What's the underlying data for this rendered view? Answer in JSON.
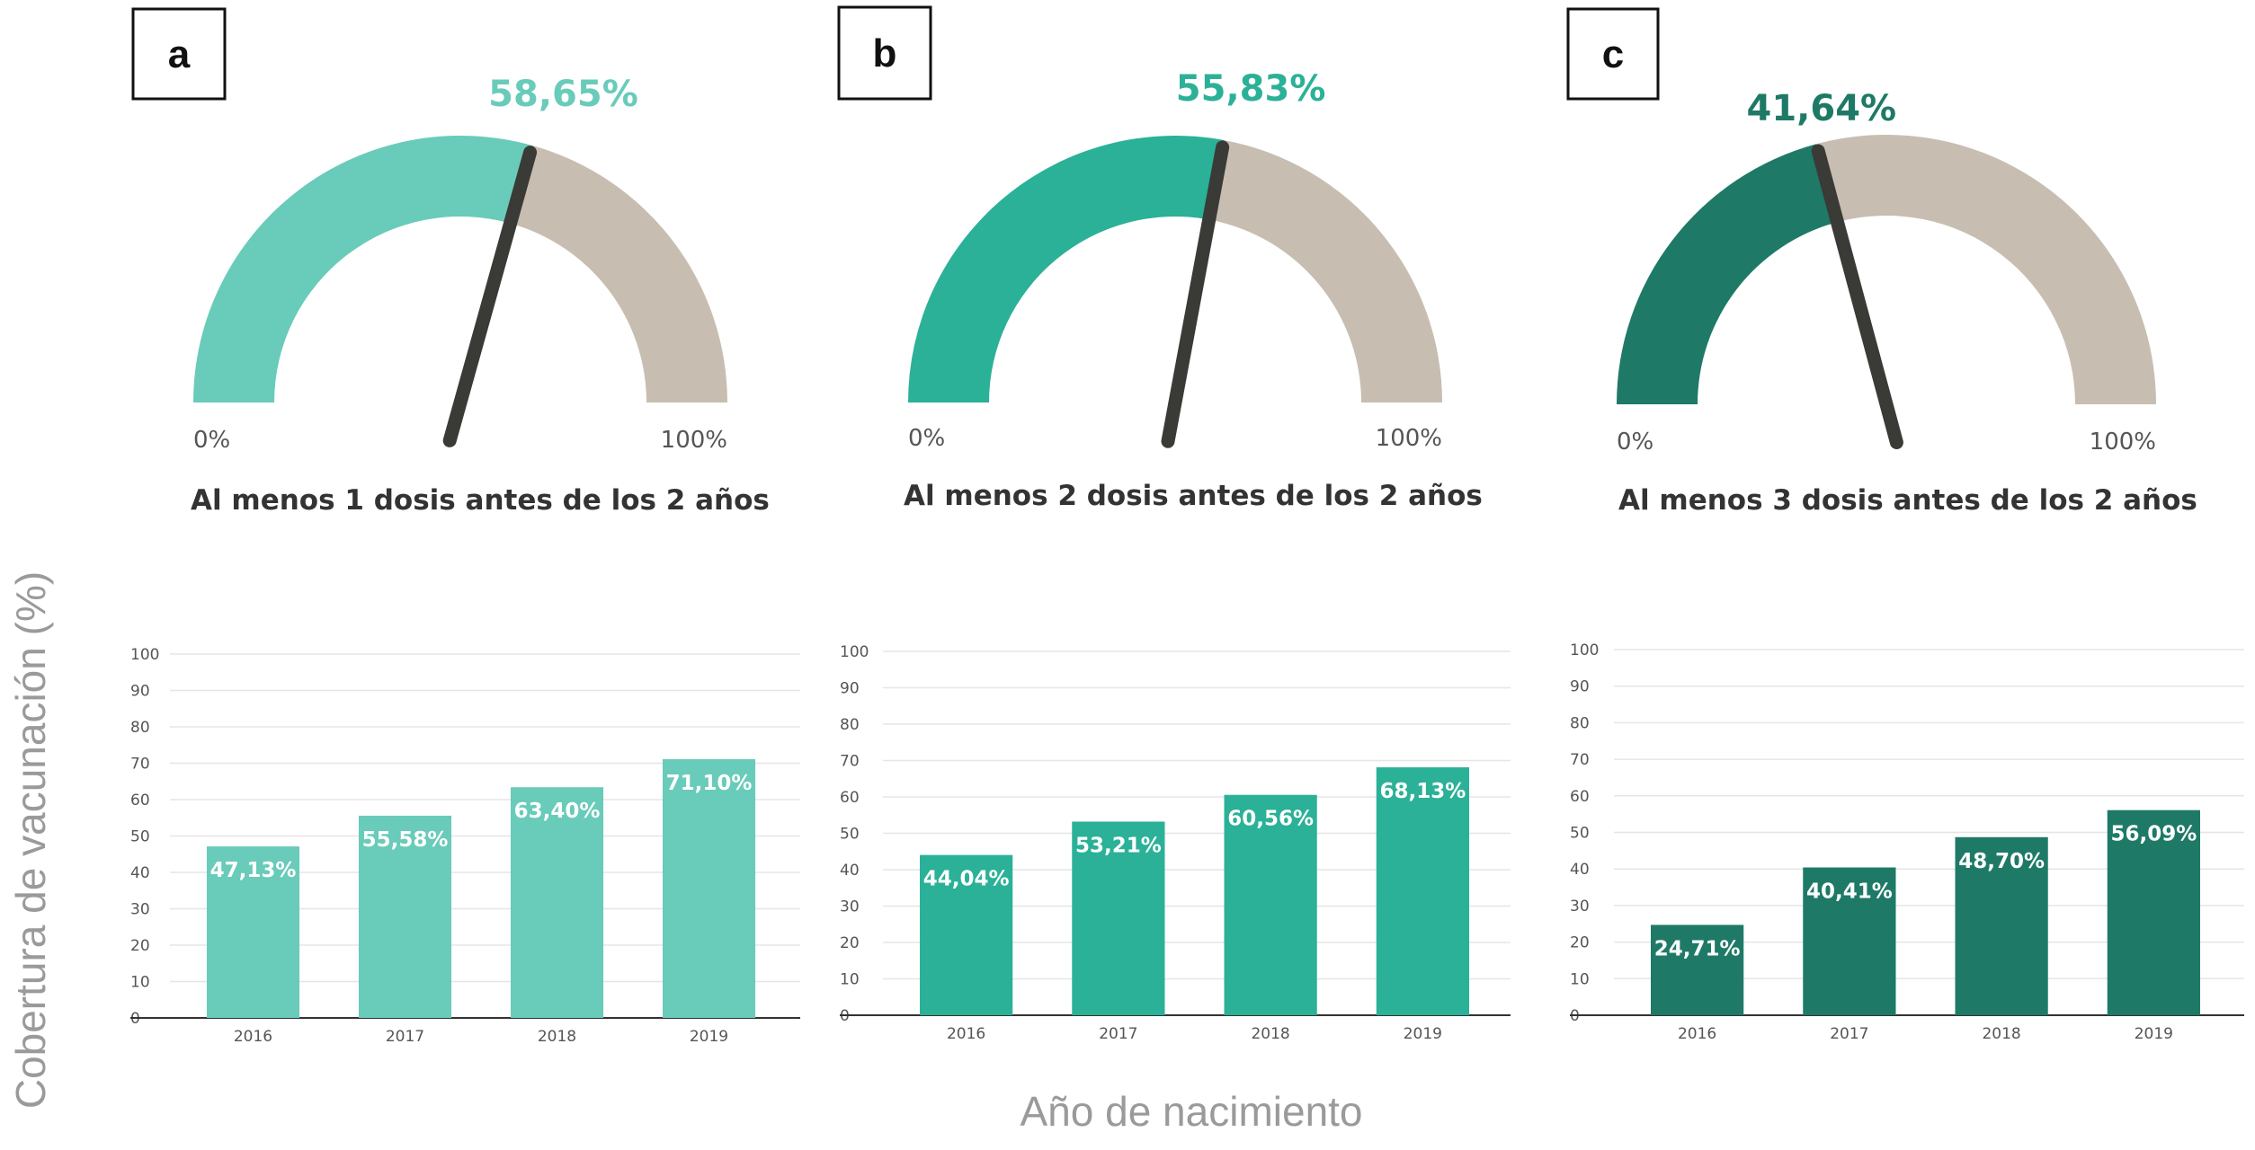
{
  "chart_data": [
    {
      "panel": "a",
      "type": "gauge",
      "value": 58.65,
      "value_label": "58,65%",
      "min_label": "0%",
      "max_label": "100%",
      "range": [
        0,
        100
      ],
      "caption": "Al menos 1 dosis antes de los 2 años",
      "color": "#69cbb9",
      "track_color": "#c7beb1",
      "needle_color": "#3a3a36"
    },
    {
      "panel": "b",
      "type": "gauge",
      "value": 55.83,
      "value_label": "55,83%",
      "min_label": "0%",
      "max_label": "100%",
      "range": [
        0,
        100
      ],
      "caption": "Al menos 2 dosis antes de los 2 años",
      "color": "#2bb197",
      "track_color": "#c7beb1",
      "needle_color": "#3a3a36"
    },
    {
      "panel": "c",
      "type": "gauge",
      "value": 41.64,
      "value_label": "41,64%",
      "min_label": "0%",
      "max_label": "100%",
      "range": [
        0,
        100
      ],
      "caption": "Al menos 3 dosis antes de los 2 años",
      "color": "#1e7a66",
      "track_color": "#c7beb1",
      "needle_color": "#3a3a36"
    },
    {
      "panel": "a",
      "type": "bar",
      "categories": [
        "2016",
        "2017",
        "2018",
        "2019"
      ],
      "values": [
        47.13,
        55.58,
        63.4,
        71.1
      ],
      "value_labels": [
        "47,13%",
        "55,58%",
        "63,40%",
        "71,10%"
      ],
      "ylim": [
        0,
        100
      ],
      "yticks": [
        "0",
        "10",
        "20",
        "30",
        "40",
        "50",
        "60",
        "70",
        "80",
        "90",
        "100"
      ],
      "grid": true,
      "color": "#69cbb9"
    },
    {
      "panel": "b",
      "type": "bar",
      "categories": [
        "2016",
        "2017",
        "2018",
        "2019"
      ],
      "values": [
        44.04,
        53.21,
        60.56,
        68.13
      ],
      "value_labels": [
        "44,04%",
        "53,21%",
        "60,56%",
        "68,13%"
      ],
      "ylim": [
        0,
        100
      ],
      "yticks": [
        "0",
        "10",
        "20",
        "30",
        "40",
        "50",
        "60",
        "70",
        "80",
        "90",
        "100"
      ],
      "grid": true,
      "color": "#2bb197"
    },
    {
      "panel": "c",
      "type": "bar",
      "categories": [
        "2016",
        "2017",
        "2018",
        "2019"
      ],
      "values": [
        24.71,
        40.41,
        48.7,
        56.09
      ],
      "value_labels": [
        "24,71%",
        "40,41%",
        "48,70%",
        "56,09%"
      ],
      "ylim": [
        0,
        100
      ],
      "yticks": [
        "0",
        "10",
        "20",
        "30",
        "40",
        "50",
        "60",
        "70",
        "80",
        "90",
        "100"
      ],
      "grid": true,
      "color": "#1e7a66"
    }
  ],
  "ylabel": "Cobertura de vacunación (%)",
  "xlabel": "Año de nacimiento"
}
